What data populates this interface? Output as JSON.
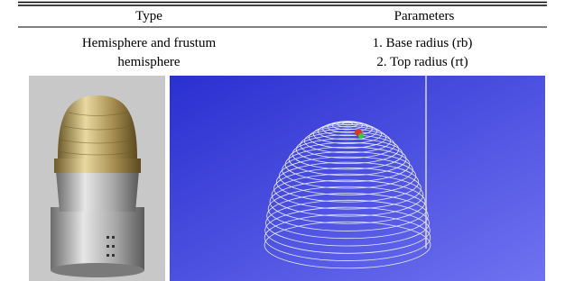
{
  "table": {
    "header": [
      "Type",
      "Parameters"
    ],
    "rows": [
      {
        "type": [
          "Hemisphere and frustum",
          "hemisphere"
        ],
        "parameters": [
          "1.  Base radius (rb)",
          "2.  Top radius (rt)"
        ]
      }
    ]
  }
}
